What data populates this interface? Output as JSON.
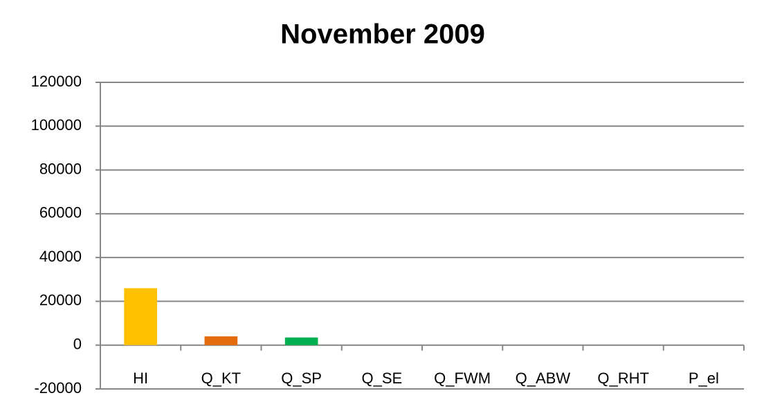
{
  "chart_data": {
    "type": "bar",
    "title": "November 2009",
    "categories": [
      "HI",
      "Q_KT",
      "Q_SP",
      "Q_SE",
      "Q_FWM",
      "Q_ABW",
      "Q_RHT",
      "P_el"
    ],
    "values": [
      26000,
      4000,
      3500,
      0,
      0,
      0,
      0,
      0
    ],
    "colors": [
      "#ffc000",
      "#e46c0a",
      "#00b050",
      "#4f81bd",
      "#c0504d",
      "#9bbb59",
      "#8064a2",
      "#4bacc6"
    ],
    "ylim": [
      -20000,
      120000
    ],
    "yticks": [
      -20000,
      0,
      20000,
      40000,
      60000,
      80000,
      100000,
      120000
    ],
    "grid": true
  }
}
